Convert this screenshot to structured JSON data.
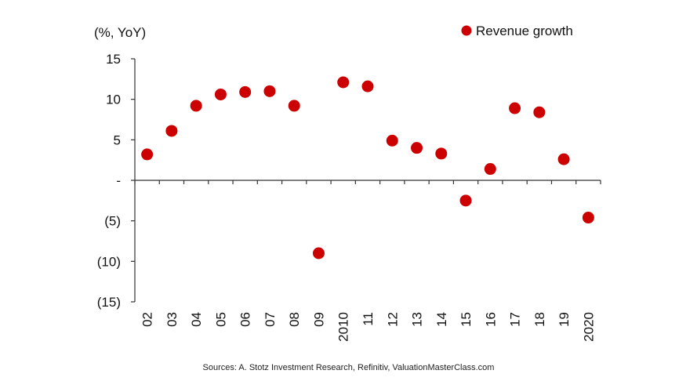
{
  "chart_data": {
    "type": "scatter",
    "ylabel": "(%, YoY)",
    "y_tick_labels": [
      "15",
      "10",
      "5",
      "-",
      "(5)",
      "(10)",
      "(15)"
    ],
    "y_tick_values": [
      15,
      10,
      5,
      0,
      -5,
      -10,
      -15
    ],
    "ylim": [
      -15,
      15
    ],
    "x_tick_labels": [
      "02",
      "03",
      "04",
      "05",
      "06",
      "07",
      "08",
      "09",
      "2010",
      "11",
      "12",
      "13",
      "14",
      "15",
      "16",
      "17",
      "18",
      "19",
      "2020"
    ],
    "series": [
      {
        "name": "Revenue growth",
        "color": "#cc0000",
        "values": [
          3.2,
          6.1,
          9.2,
          10.6,
          10.9,
          11.0,
          9.2,
          -9.0,
          12.1,
          11.6,
          4.9,
          4.0,
          3.3,
          -2.5,
          1.4,
          8.9,
          8.4,
          2.6,
          -4.6
        ]
      }
    ],
    "legend": {
      "label": "Revenue growth",
      "position": "top-right"
    },
    "source": "Sources: A. Stotz Investment Research, Refinitiv, ValuationMasterClass.com"
  }
}
